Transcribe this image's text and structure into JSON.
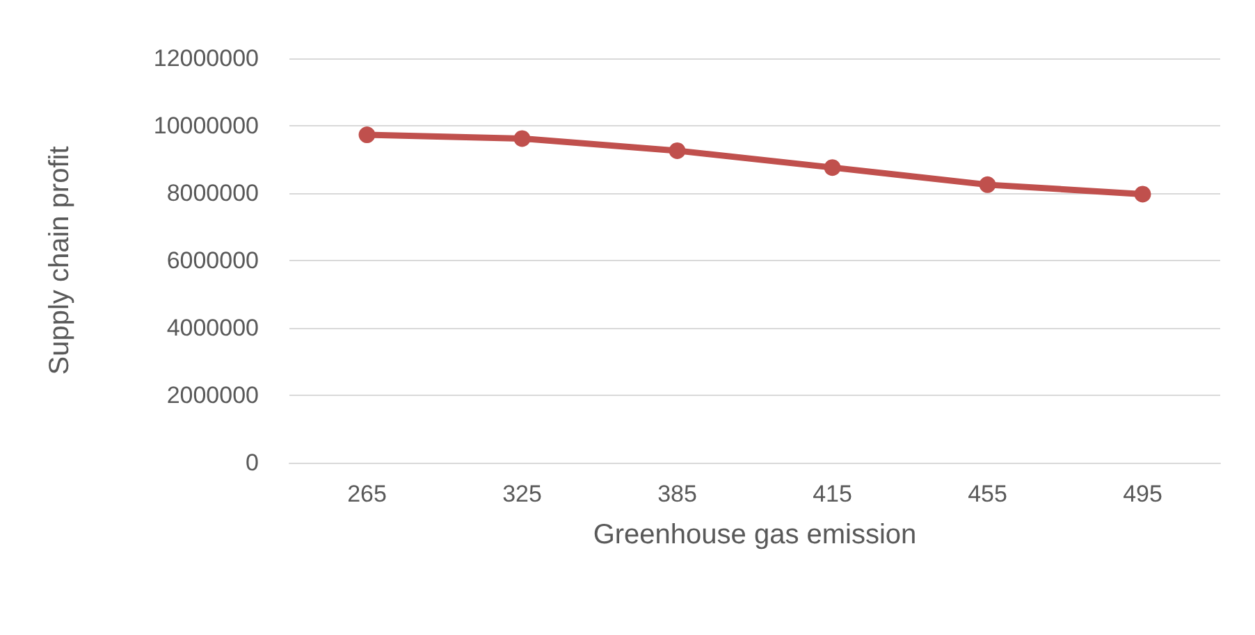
{
  "chart_data": {
    "type": "line",
    "xlabel": "Greenhouse gas emission",
    "ylabel": "Supply chain profit",
    "categories": [
      "265",
      "325",
      "385",
      "415",
      "455",
      "495"
    ],
    "series": [
      {
        "color": "#c0504d",
        "values": [
          9730000,
          9620000,
          9260000,
          8760000,
          8250000,
          7970000
        ]
      }
    ],
    "ylim": [
      0,
      12000000
    ],
    "yticks": [
      0,
      2000000,
      4000000,
      6000000,
      8000000,
      10000000,
      12000000
    ],
    "grid": "y",
    "marker": "circle",
    "line_style": "solid"
  }
}
